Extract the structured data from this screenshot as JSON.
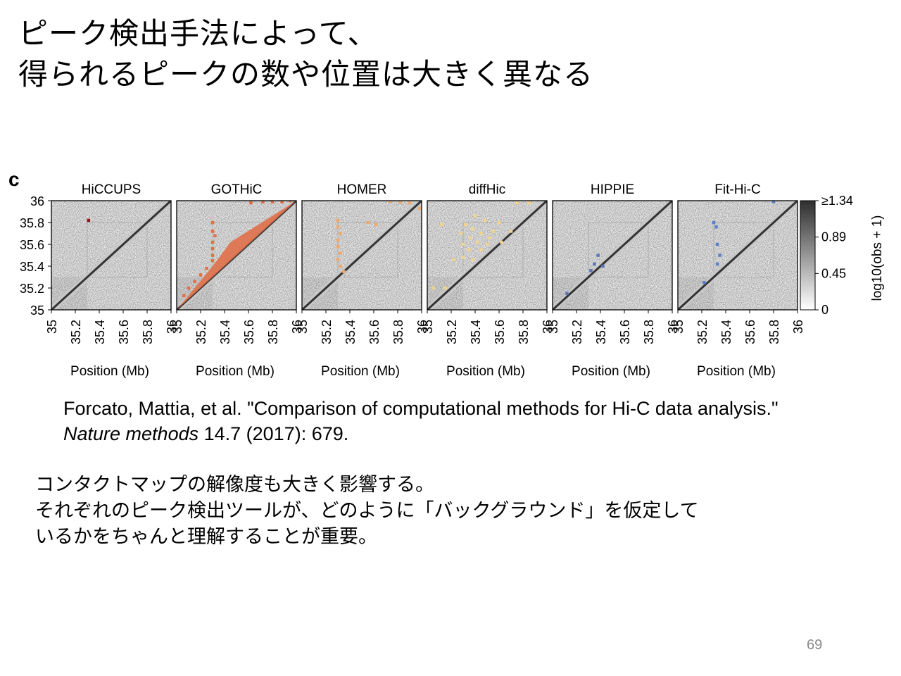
{
  "slide": {
    "title_line1": "ピーク検出手法によって、",
    "title_line2": "得られるピークの数や位置は大きく異なる",
    "citation_part1": "Forcato, Mattia, et al. \"Comparison of computational methods for Hi-C data analysis.\" ",
    "citation_journal": "Nature methods",
    "citation_part2": " 14.7 (2017): 679.",
    "body_line1": "コンタクトマップの解像度も大きく影響する。",
    "body_line2": "それぞれのピーク検出ツールが、どのように「バックグラウンド」を仮定して",
    "body_line3": "いるかをちゃんと理解することが重要。",
    "page_number": "69"
  },
  "chart_data": {
    "type": "heatmap",
    "panel_letter": "c",
    "xlabel": "Position (Mb)",
    "ylabel": "",
    "xlim": [
      35,
      36
    ],
    "ylim": [
      35,
      36
    ],
    "x_ticks": [
      "35",
      "35.2",
      "35.4",
      "35.6",
      "35.8",
      "36"
    ],
    "y_ticks": [
      "36",
      "35.8",
      "35.6",
      "35.4",
      "35.2",
      "35"
    ],
    "colorbar": {
      "label": "log10(obs + 1)",
      "ticks": [
        "≥1.34",
        "0.89",
        "0.45",
        "0"
      ],
      "range": [
        0,
        1.34
      ]
    },
    "panels": [
      {
        "name": "HiCCUPS",
        "color": "#8b1a1a",
        "peaks": [
          [
            35.31,
            35.82
          ]
        ]
      },
      {
        "name": "GOTHiC",
        "color": "#e0704a",
        "peaks": [
          [
            35.3,
            35.8
          ],
          [
            35.3,
            35.72
          ],
          [
            35.32,
            35.68
          ],
          [
            35.3,
            35.62
          ],
          [
            35.3,
            35.56
          ],
          [
            35.3,
            35.5
          ],
          [
            35.3,
            35.45
          ],
          [
            35.25,
            35.38
          ],
          [
            35.2,
            35.32
          ],
          [
            35.15,
            35.26
          ],
          [
            35.1,
            35.2
          ],
          [
            35.06,
            35.13
          ],
          [
            35.62,
            35.98
          ],
          [
            35.72,
            35.99
          ],
          [
            35.8,
            35.99
          ],
          [
            35.88,
            35.99
          ],
          [
            35.95,
            36.0
          ]
        ]
      },
      {
        "name": "HOMER",
        "color": "#efa96a",
        "peaks": [
          [
            35.3,
            35.82
          ],
          [
            35.3,
            35.76
          ],
          [
            35.32,
            35.7
          ],
          [
            35.3,
            35.64
          ],
          [
            35.3,
            35.58
          ],
          [
            35.32,
            35.52
          ],
          [
            35.3,
            35.46
          ],
          [
            35.32,
            35.4
          ],
          [
            35.35,
            35.35
          ],
          [
            35.55,
            35.8
          ],
          [
            35.62,
            35.78
          ],
          [
            35.74,
            35.99
          ],
          [
            35.82,
            35.99
          ],
          [
            35.9,
            35.98
          ],
          [
            35.98,
            35.93
          ]
        ]
      },
      {
        "name": "diffHic",
        "color": "#f2d48a",
        "peaks": [
          [
            35.32,
            35.78
          ],
          [
            35.38,
            35.74
          ],
          [
            35.45,
            35.7
          ],
          [
            35.52,
            35.66
          ],
          [
            35.36,
            35.66
          ],
          [
            35.42,
            35.62
          ],
          [
            35.5,
            35.6
          ],
          [
            35.3,
            35.6
          ],
          [
            35.35,
            35.55
          ],
          [
            35.45,
            35.55
          ],
          [
            35.55,
            35.72
          ],
          [
            35.6,
            35.8
          ],
          [
            35.48,
            35.82
          ],
          [
            35.4,
            35.86
          ],
          [
            35.28,
            35.7
          ],
          [
            35.3,
            35.48
          ],
          [
            35.22,
            35.46
          ],
          [
            35.38,
            35.46
          ],
          [
            35.12,
            35.78
          ],
          [
            35.05,
            35.2
          ],
          [
            35.15,
            35.2
          ],
          [
            35.75,
            35.98
          ],
          [
            35.85,
            35.98
          ],
          [
            35.7,
            35.72
          ],
          [
            35.62,
            35.62
          ]
        ]
      },
      {
        "name": "HIPPIE",
        "color": "#5a76b8",
        "peaks": [
          [
            35.35,
            35.42
          ],
          [
            35.32,
            35.36
          ],
          [
            35.42,
            35.4
          ],
          [
            35.12,
            35.15
          ],
          [
            35.38,
            35.5
          ]
        ]
      },
      {
        "name": "Fit-Hi-C",
        "color": "#5a7ec8",
        "peaks": [
          [
            35.3,
            35.8
          ],
          [
            35.32,
            35.76
          ],
          [
            35.33,
            35.6
          ],
          [
            35.35,
            35.5
          ],
          [
            35.33,
            35.42
          ],
          [
            35.22,
            35.25
          ],
          [
            35.8,
            35.99
          ]
        ]
      }
    ]
  }
}
